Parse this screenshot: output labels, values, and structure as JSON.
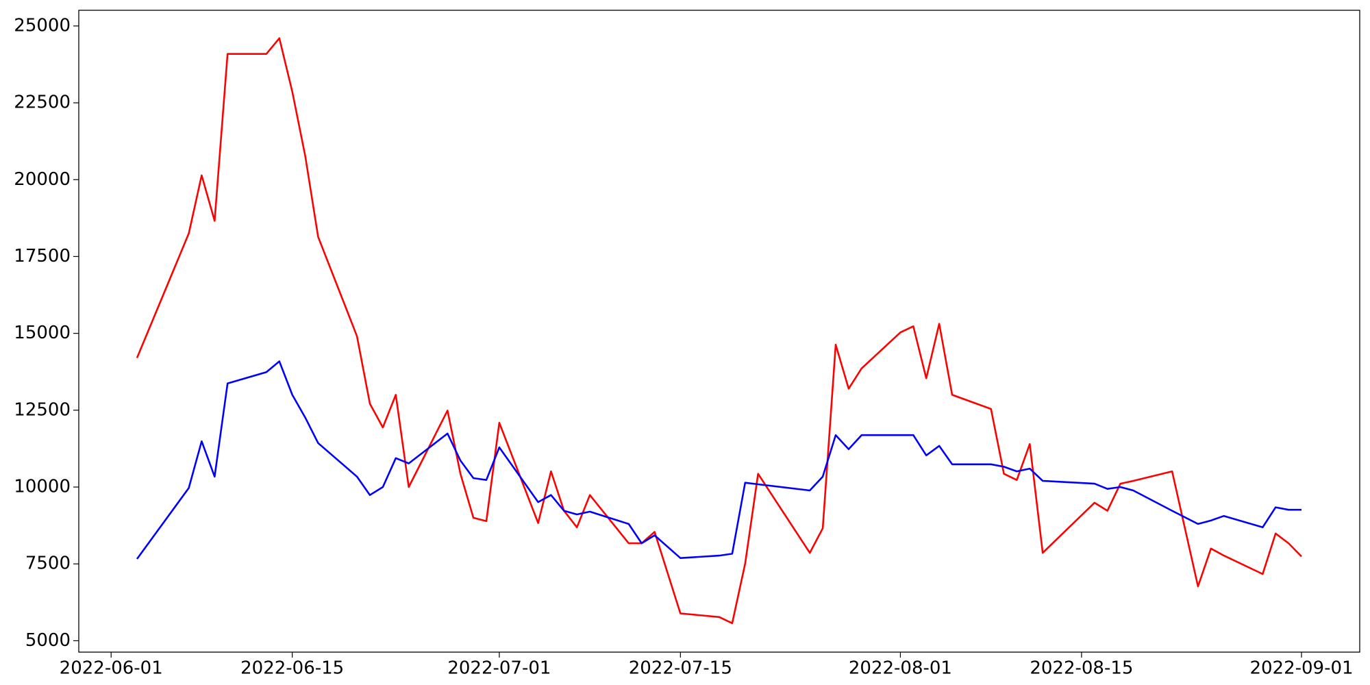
{
  "chart_data": {
    "type": "line",
    "x": [
      "2022-06-03",
      "2022-06-07",
      "2022-06-08",
      "2022-06-09",
      "2022-06-10",
      "2022-06-13",
      "2022-06-14",
      "2022-06-15",
      "2022-06-16",
      "2022-06-17",
      "2022-06-20",
      "2022-06-21",
      "2022-06-22",
      "2022-06-23",
      "2022-06-24",
      "2022-06-27",
      "2022-06-28",
      "2022-06-29",
      "2022-06-30",
      "2022-07-01",
      "2022-07-04",
      "2022-07-05",
      "2022-07-06",
      "2022-07-07",
      "2022-07-08",
      "2022-07-11",
      "2022-07-12",
      "2022-07-13",
      "2022-07-15",
      "2022-07-18",
      "2022-07-19",
      "2022-07-20",
      "2022-07-21",
      "2022-07-25",
      "2022-07-26",
      "2022-07-27",
      "2022-07-28",
      "2022-07-29",
      "2022-08-01",
      "2022-08-02",
      "2022-08-03",
      "2022-08-04",
      "2022-08-05",
      "2022-08-08",
      "2022-08-09",
      "2022-08-10",
      "2022-08-11",
      "2022-08-12",
      "2022-08-16",
      "2022-08-17",
      "2022-08-18",
      "2022-08-19",
      "2022-08-22",
      "2022-08-24",
      "2022-08-25",
      "2022-08-26",
      "2022-08-29",
      "2022-08-30",
      "2022-08-31",
      "2022-09-01"
    ],
    "series": [
      {
        "color": "#ff0000",
        "values": [
          14200,
          18250,
          20140,
          18660,
          24090,
          24090,
          24600,
          22860,
          20770,
          18140,
          14910,
          12710,
          11940,
          13000,
          10000,
          12490,
          10430,
          9000,
          8890,
          12090,
          8830,
          10510,
          9230,
          8690,
          9740,
          8170,
          8170,
          8540,
          5890,
          5770,
          5570,
          7510,
          10430,
          7860,
          8660,
          14630,
          13200,
          13860,
          15030,
          15230,
          13540,
          15310,
          13000,
          12540,
          10430,
          10230,
          11400,
          7860,
          9490,
          9230,
          10110,
          10200,
          10510,
          6770,
          8000,
          7770,
          7170,
          8490,
          8170,
          7740
        ]
      },
      {
        "color": "#0000ff",
        "values": [
          7660,
          9970,
          11490,
          10340,
          13370,
          13740,
          14090,
          13000,
          12260,
          11430,
          10340,
          9740,
          10000,
          10940,
          10770,
          11740,
          10860,
          10290,
          10230,
          11290,
          9510,
          9740,
          9230,
          9110,
          9200,
          8800,
          8170,
          8430,
          7690,
          7770,
          7830,
          10140,
          10090,
          9890,
          10340,
          11690,
          11230,
          11690,
          11690,
          11690,
          11030,
          11340,
          10740,
          10740,
          10660,
          10510,
          10600,
          10200,
          10110,
          9940,
          10000,
          9890,
          9230,
          8800,
          8910,
          9060,
          8690,
          9340,
          9260,
          9260
        ]
      }
    ],
    "xlim": [
      "2022-05-29T12:00",
      "2022-09-05T12:00"
    ],
    "xticks": [
      "2022-06-01",
      "2022-06-15",
      "2022-07-01",
      "2022-07-15",
      "2022-08-01",
      "2022-08-15",
      "2022-09-01"
    ],
    "ylim": [
      4630,
      25510
    ],
    "yticks": [
      5000,
      7500,
      10000,
      12500,
      15000,
      17500,
      20000,
      22500,
      25000
    ],
    "grid": false
  }
}
